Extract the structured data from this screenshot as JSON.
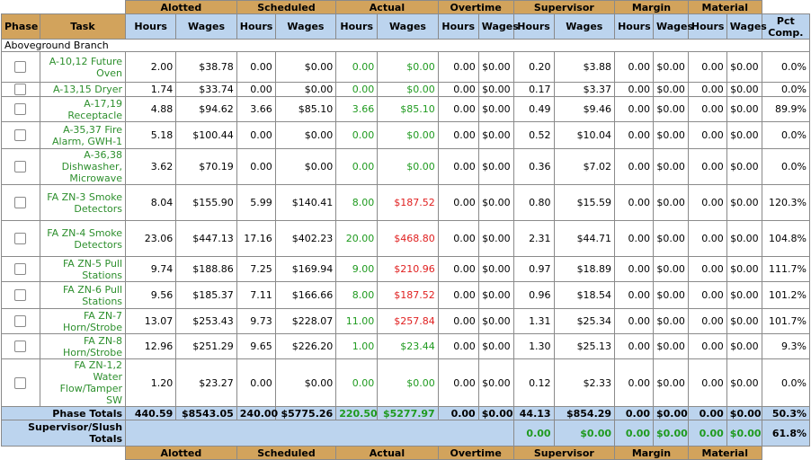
{
  "groups": [
    "Alotted",
    "Scheduled",
    "Actual",
    "Overtime",
    "Supervisor",
    "Margin",
    "Material"
  ],
  "columns": {
    "phase": "Phase",
    "task": "Task",
    "hours": "Hours",
    "wages": "Wages",
    "pct": "Pct Comp."
  },
  "branch": "Aboveground Branch",
  "rows": [
    {
      "task": "A-10,12 Future Oven",
      "h": 34,
      "v": [
        "2.00",
        "$38.78",
        "0.00",
        "$0.00",
        "0.00",
        "$0.00",
        "0.00",
        "$0.00",
        "0.20",
        "$3.88",
        "0.00",
        "$0.00",
        "0.00",
        "$0.00",
        "0.0%"
      ],
      "actual_wage_red": false
    },
    {
      "task": "A-13,15 Dryer",
      "h": 16,
      "v": [
        "1.74",
        "$33.74",
        "0.00",
        "$0.00",
        "0.00",
        "$0.00",
        "0.00",
        "$0.00",
        "0.17",
        "$3.37",
        "0.00",
        "$0.00",
        "0.00",
        "$0.00",
        "0.0%"
      ],
      "actual_wage_red": false
    },
    {
      "task": "A-17,19 Receptacle",
      "h": 28,
      "v": [
        "4.88",
        "$94.62",
        "3.66",
        "$85.10",
        "3.66",
        "$85.10",
        "0.00",
        "$0.00",
        "0.49",
        "$9.46",
        "0.00",
        "$0.00",
        "0.00",
        "$0.00",
        "89.9%"
      ],
      "actual_wage_red": false
    },
    {
      "task": "A-35,37 Fire Alarm, GWH-1",
      "h": 30,
      "v": [
        "5.18",
        "$100.44",
        "0.00",
        "$0.00",
        "0.00",
        "$0.00",
        "0.00",
        "$0.00",
        "0.52",
        "$10.04",
        "0.00",
        "$0.00",
        "0.00",
        "$0.00",
        "0.0%"
      ],
      "actual_wage_red": false
    },
    {
      "task": "A-36,38 Dishwasher, Microwave",
      "h": 40,
      "v": [
        "3.62",
        "$70.19",
        "0.00",
        "$0.00",
        "0.00",
        "$0.00",
        "0.00",
        "$0.00",
        "0.36",
        "$7.02",
        "0.00",
        "$0.00",
        "0.00",
        "$0.00",
        "0.0%"
      ],
      "actual_wage_red": false
    },
    {
      "task": "FA ZN-3 Smoke Detectors",
      "h": 40,
      "v": [
        "8.04",
        "$155.90",
        "5.99",
        "$140.41",
        "8.00",
        "$187.52",
        "0.00",
        "$0.00",
        "0.80",
        "$15.59",
        "0.00",
        "$0.00",
        "0.00",
        "$0.00",
        "120.3%"
      ],
      "actual_wage_red": true
    },
    {
      "task": "FA ZN-4 Smoke Detectors",
      "h": 40,
      "v": [
        "23.06",
        "$447.13",
        "17.16",
        "$402.23",
        "20.00",
        "$468.80",
        "0.00",
        "$0.00",
        "2.31",
        "$44.71",
        "0.00",
        "$0.00",
        "0.00",
        "$0.00",
        "104.8%"
      ],
      "actual_wage_red": true
    },
    {
      "task": "FA ZN-5 Pull Stations",
      "h": 28,
      "v": [
        "9.74",
        "$188.86",
        "7.25",
        "$169.94",
        "9.00",
        "$210.96",
        "0.00",
        "$0.00",
        "0.97",
        "$18.89",
        "0.00",
        "$0.00",
        "0.00",
        "$0.00",
        "111.7%"
      ],
      "actual_wage_red": true
    },
    {
      "task": "FA ZN-6 Pull Stations",
      "h": 30,
      "v": [
        "9.56",
        "$185.37",
        "7.11",
        "$166.66",
        "8.00",
        "$187.52",
        "0.00",
        "$0.00",
        "0.96",
        "$18.54",
        "0.00",
        "$0.00",
        "0.00",
        "$0.00",
        "101.2%"
      ],
      "actual_wage_red": true
    },
    {
      "task": "FA ZN-7 Horn/Strobe",
      "h": 28,
      "v": [
        "13.07",
        "$253.43",
        "9.73",
        "$228.07",
        "11.00",
        "$257.84",
        "0.00",
        "$0.00",
        "1.31",
        "$25.34",
        "0.00",
        "$0.00",
        "0.00",
        "$0.00",
        "101.7%"
      ],
      "actual_wage_red": true
    },
    {
      "task": "FA ZN-8 Horn/Strobe",
      "h": 28,
      "v": [
        "12.96",
        "$251.29",
        "9.65",
        "$226.20",
        "1.00",
        "$23.44",
        "0.00",
        "$0.00",
        "1.30",
        "$25.13",
        "0.00",
        "$0.00",
        "0.00",
        "$0.00",
        "9.3%"
      ],
      "actual_wage_red": false
    },
    {
      "task": "FA ZN-1,2 Water Flow/Tamper SW",
      "h": 53,
      "v": [
        "1.20",
        "$23.27",
        "0.00",
        "$0.00",
        "0.00",
        "$0.00",
        "0.00",
        "$0.00",
        "0.12",
        "$2.33",
        "0.00",
        "$0.00",
        "0.00",
        "$0.00",
        "0.0%"
      ],
      "actual_wage_red": false
    }
  ],
  "phase_totals": {
    "label": "Phase Totals",
    "v": [
      "440.59",
      "$8543.05",
      "240.00",
      "$5775.26",
      "220.50",
      "$5277.97",
      "0.00",
      "$0.00",
      "44.13",
      "$854.29",
      "0.00",
      "$0.00",
      "0.00",
      "$0.00",
      "50.3%"
    ]
  },
  "supervisor_totals": {
    "label": "Supervisor/Slush Totals",
    "v": [
      "0.00",
      "$0.00",
      "0.00",
      "$0.00",
      "0.00",
      "$0.00",
      "61.8%"
    ]
  },
  "colors": {
    "group_header": "#d2a35c",
    "sub_header": "#bcd4ee",
    "task_text": "#2d8f2d",
    "actual_text": "#1f9a1f",
    "over_budget": "#e02020"
  }
}
